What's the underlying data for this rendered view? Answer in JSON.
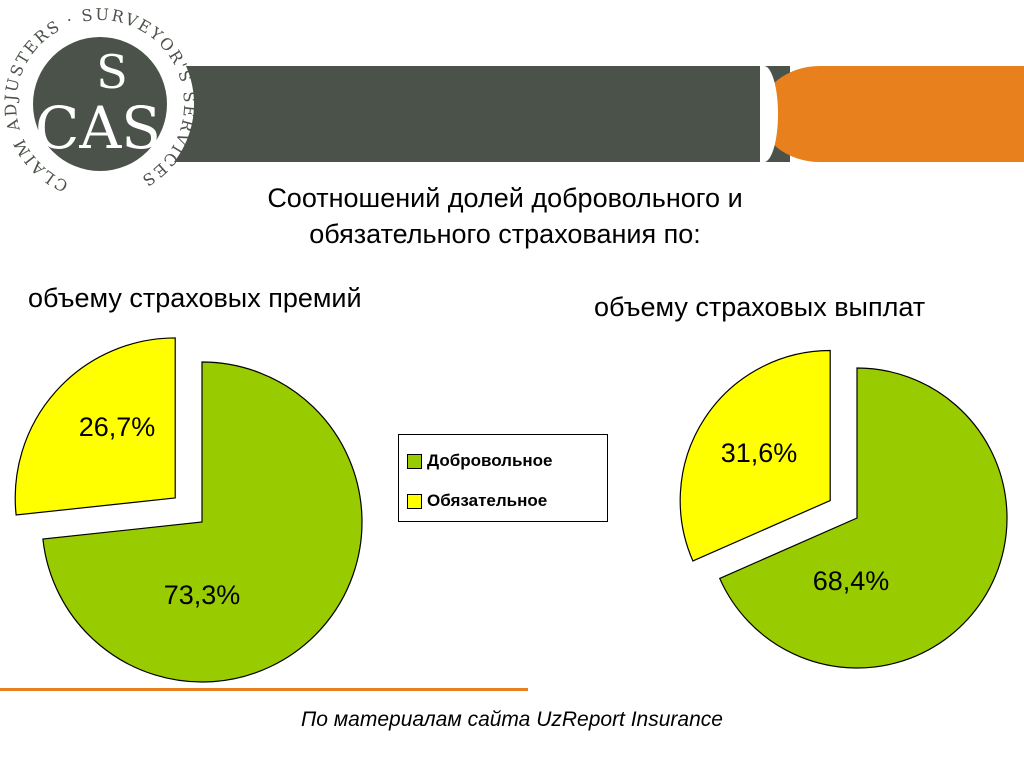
{
  "logo": {
    "ring_text": "CLAIM ADJUSTERS · SURVEYOR'S SERVICES",
    "monogram": "CAS",
    "monogram_s": "S"
  },
  "header": {
    "title_line1": "Соотношений долей добровольного и",
    "title_line2": "обязательного страхования по:"
  },
  "colors": {
    "voluntary": "#99cc00",
    "mandatory": "#ffff00",
    "band_dark": "#4b5249",
    "band_orange": "#e8801e"
  },
  "chart_data": [
    {
      "type": "pie",
      "title": "объему страховых премий",
      "categories": [
        "Добровольное",
        "Обязательное"
      ],
      "values": [
        73.3,
        26.7
      ],
      "labels": [
        "73,3%",
        "26,7%"
      ],
      "exploded": "Обязательное",
      "legend": "between charts"
    },
    {
      "type": "pie",
      "title": "объему страховых выплат",
      "categories": [
        "Добровольное",
        "Обязательное"
      ],
      "values": [
        68.4,
        31.6
      ],
      "labels": [
        "68,4%",
        "31,6%"
      ],
      "exploded": "Обязательное",
      "legend": "between charts"
    }
  ],
  "legend": {
    "items": [
      {
        "label": "Добровольное",
        "color": "#99cc00"
      },
      {
        "label": "Обязательное",
        "color": "#ffff00"
      }
    ]
  },
  "footer": {
    "source": "По материалам сайта UzReport Insurance"
  }
}
